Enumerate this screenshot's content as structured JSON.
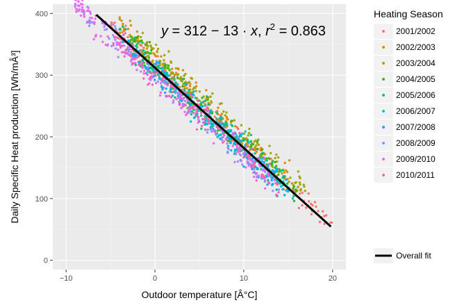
{
  "chart_data": {
    "type": "scatter",
    "xlabel": "Outdoor temperature [Â°C]",
    "ylabel": "Daily Specific Heat production [Wh/mÂ³]",
    "xlim": [
      -11.5,
      21.5
    ],
    "ylim": [
      -15,
      415
    ],
    "x_ticks": [
      -10,
      0,
      10,
      20
    ],
    "y_ticks": [
      0,
      100,
      200,
      300,
      400
    ],
    "x_tick_labels": [
      "−10",
      "0",
      "10",
      "20"
    ],
    "y_tick_labels": [
      "0",
      "100",
      "200",
      "300",
      "400"
    ],
    "grid": true,
    "legend_position": "right",
    "legend_title": "Heating Season",
    "series": [
      {
        "name": "2001/2002",
        "color": "#F8766D",
        "x_range": [
          -5,
          20
        ],
        "offset": 5
      },
      {
        "name": "2002/2003",
        "color": "#D89000",
        "x_range": [
          -4,
          16
        ],
        "offset": 14
      },
      {
        "name": "2003/2004",
        "color": "#A3A500",
        "x_range": [
          -2,
          17
        ],
        "offset": 20
      },
      {
        "name": "2004/2005",
        "color": "#39B600",
        "x_range": [
          -3,
          16
        ],
        "offset": 6
      },
      {
        "name": "2005/2006",
        "color": "#00BF7D",
        "x_range": [
          -4,
          15
        ],
        "offset": 2
      },
      {
        "name": "2006/2007",
        "color": "#00BFC4",
        "x_range": [
          -1,
          16
        ],
        "offset": -4
      },
      {
        "name": "2007/2008",
        "color": "#00B0F6",
        "x_range": [
          -3,
          15
        ],
        "offset": -6
      },
      {
        "name": "2008/2009",
        "color": "#9590FF",
        "x_range": [
          -8,
          14
        ],
        "offset": -10
      },
      {
        "name": "2009/2010",
        "color": "#E76BF3",
        "x_range": [
          -9,
          13
        ],
        "offset": -14
      },
      {
        "name": "2010/2011",
        "color": "#FF62BC",
        "x_range": [
          -5,
          14
        ],
        "offset": -9
      }
    ],
    "fit": {
      "name": "Overall fit",
      "color": "#000000",
      "intercept": 312,
      "slope": -13,
      "r2": 0.863,
      "x": [
        -6.6,
        19.8
      ]
    },
    "annotation": {
      "y": "y",
      "eq": " = 312 − 13 · ",
      "x": "x",
      "sep": ",  ",
      "r": "r",
      "sup": "2",
      "r2_val": " = 0.863"
    }
  }
}
